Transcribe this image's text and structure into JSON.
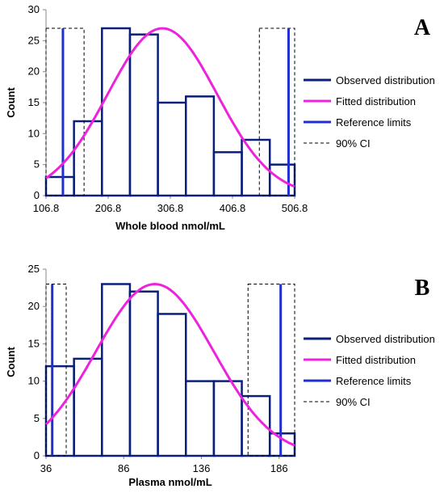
{
  "colors": {
    "observed": "#0a1f7a",
    "fitted": "#ee22dd",
    "reference": "#1f2fd0",
    "ci": "#000000"
  },
  "chart_data": [
    {
      "type": "bar",
      "panel_label": "A",
      "xlabel": "Whole blood nmol/mL",
      "ylabel": "Count",
      "xlim": [
        106.8,
        506.8
      ],
      "ylim": [
        0,
        30
      ],
      "x_ticks": [
        106.8,
        206.8,
        306.8,
        406.8,
        506.8
      ],
      "x_tick_labels": [
        "106.8",
        "206.8",
        "306.8",
        "406.8",
        "506.8"
      ],
      "y_ticks": [
        0,
        5,
        10,
        15,
        20,
        25,
        30
      ],
      "y_tick_labels": [
        "0",
        "5",
        "10",
        "15",
        "20",
        "25",
        "30"
      ],
      "bins": [
        {
          "x0": 106.8,
          "x1": 151.8,
          "count": 3
        },
        {
          "x0": 151.8,
          "x1": 196.8,
          "count": 12
        },
        {
          "x0": 196.8,
          "x1": 241.8,
          "count": 27
        },
        {
          "x0": 241.8,
          "x1": 286.8,
          "count": 26
        },
        {
          "x0": 286.8,
          "x1": 331.8,
          "count": 15
        },
        {
          "x0": 331.8,
          "x1": 376.8,
          "count": 16
        },
        {
          "x0": 376.8,
          "x1": 421.8,
          "count": 7
        },
        {
          "x0": 421.8,
          "x1": 466.8,
          "count": 9
        },
        {
          "x0": 466.8,
          "x1": 506.8,
          "count": 5
        }
      ],
      "fitted_curve": {
        "mean": 294,
        "sd": 88,
        "peak": 27,
        "x_start": 106.8,
        "x_end": 506.8
      },
      "reference_limits": [
        134,
        497
      ],
      "ci_boxes": [
        {
          "x0": 106.8,
          "x1": 168,
          "top": 27
        },
        {
          "x0": 450,
          "x1": 506.8,
          "top": 27
        }
      ],
      "legend": {
        "position": "right",
        "entries": [
          {
            "key": "observed",
            "label": "Observed distribution",
            "style": "solid"
          },
          {
            "key": "fitted",
            "label": "Fitted distribution",
            "style": "solid"
          },
          {
            "key": "reference",
            "label": "Reference limits",
            "style": "solid"
          },
          {
            "key": "ci",
            "label": "90% CI",
            "style": "dashed"
          }
        ]
      }
    },
    {
      "type": "bar",
      "panel_label": "B",
      "xlabel": "Plasma nmol/mL",
      "ylabel": "Count",
      "xlim": [
        36,
        196
      ],
      "ylim": [
        0,
        25
      ],
      "x_ticks": [
        36,
        86,
        136,
        186
      ],
      "x_tick_labels": [
        "36",
        "86",
        "136",
        "186"
      ],
      "y_ticks": [
        0,
        5,
        10,
        15,
        20,
        25
      ],
      "y_tick_labels": [
        "0",
        "5",
        "10",
        "15",
        "20",
        "25"
      ],
      "bins": [
        {
          "x0": 36,
          "x1": 54,
          "count": 12
        },
        {
          "x0": 54,
          "x1": 72,
          "count": 13
        },
        {
          "x0": 72,
          "x1": 90,
          "count": 23
        },
        {
          "x0": 90,
          "x1": 108,
          "count": 22
        },
        {
          "x0": 108,
          "x1": 126,
          "count": 19
        },
        {
          "x0": 126,
          "x1": 144,
          "count": 10
        },
        {
          "x0": 144,
          "x1": 162,
          "count": 10
        },
        {
          "x0": 162,
          "x1": 180,
          "count": 8
        },
        {
          "x0": 180,
          "x1": 196,
          "count": 3
        }
      ],
      "fitted_curve": {
        "mean": 106,
        "sd": 38,
        "peak": 23,
        "x_start": 36,
        "x_end": 196
      },
      "reference_limits": [
        40,
        187
      ],
      "ci_boxes": [
        {
          "x0": 36,
          "x1": 49,
          "top": 23
        },
        {
          "x0": 166,
          "x1": 196,
          "top": 23
        }
      ],
      "legend": {
        "position": "right",
        "entries": [
          {
            "key": "observed",
            "label": "Observed distribution",
            "style": "solid"
          },
          {
            "key": "fitted",
            "label": "Fitted distribution",
            "style": "solid"
          },
          {
            "key": "reference",
            "label": "Reference limits",
            "style": "solid"
          },
          {
            "key": "ci",
            "label": "90% CI",
            "style": "dashed"
          }
        ]
      }
    }
  ]
}
